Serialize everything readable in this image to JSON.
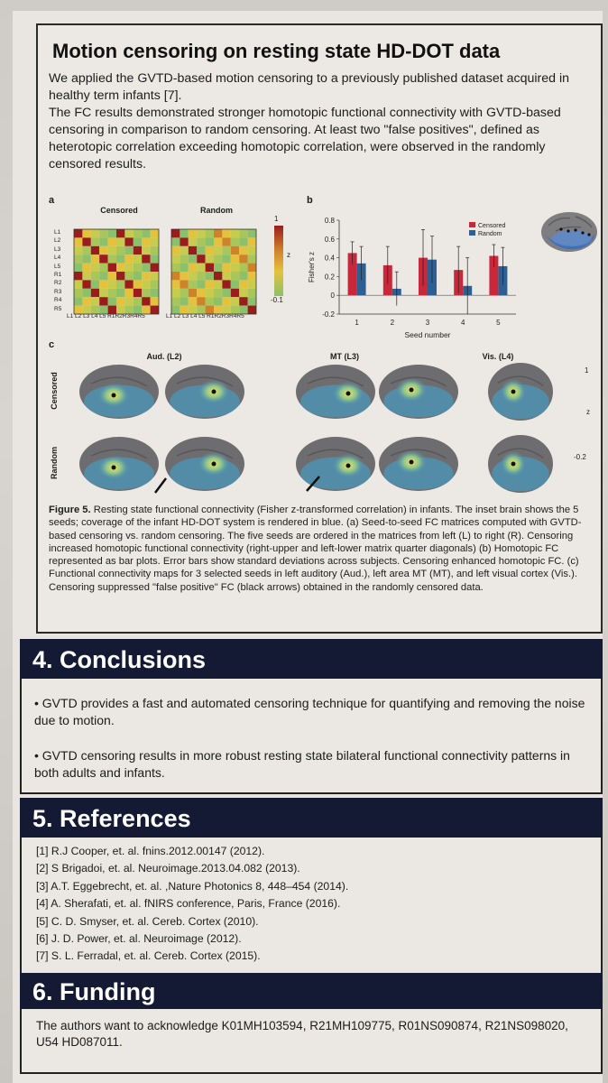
{
  "motion": {
    "title": "Motion censoring on resting state HD-DOT data",
    "para1": "We applied the GVTD-based motion censoring to a previously published dataset acquired in healthy term infants [7].",
    "para2": "The FC results demonstrated stronger homotopic functional connectivity with GVTD-based censoring in comparison to random censoring. At least two \"false positives\", defined as heterotopic correlation exceeding homotopic correlation, were observed in the randomly censored results."
  },
  "figure": {
    "panel_a": "a",
    "panel_b": "b",
    "panel_c": "c",
    "matrix_censored_title": "Censored",
    "matrix_random_title": "Random",
    "matrix_labels": [
      "L1",
      "L2",
      "L3",
      "L4",
      "L5",
      "R1",
      "R2",
      "R3",
      "R4",
      "R5"
    ],
    "matrix_xlabels": "L1 L2 L3 L4 L5 R1R2R3R4R5",
    "colorbar_top": "1",
    "colorbar_bottom": "-0.1",
    "colorbar_z": "z",
    "colorbar2_top": "1",
    "colorbar2_bottom": "-0.2",
    "colorbar2_z": "z",
    "map_titles": [
      "Aud. (L2)",
      "MT (L3)",
      "Vis. (L4)"
    ],
    "row_labels": [
      "Censored",
      "Random"
    ],
    "caption_lead": "Figure 5.",
    "caption": "Resting state functional connectivity (Fisher z-transformed correlation) in infants. The inset brain shows the 5 seeds; coverage of the infant HD-DOT system is rendered in blue. (a) Seed-to-seed FC matrices computed with GVTD-based censoring vs. random censoring. The five seeds are ordered in the matrices from left (L) to right (R). Censoring increased homotopic functional connectivity (right-upper and left-lower matrix quarter diagonals) (b) Homotopic FC represented as bar plots. Error bars show standard deviations across subjects. Censoring enhanced homotopic FC. (c) Functional connectivity maps for 3 selected seeds in left auditory (Aud.), left area MT (MT), and left visual cortex (Vis.). Censoring suppressed \"false positive\" FC (black arrows) obtained in the randomly censored data."
  },
  "chart_data": {
    "type": "bar",
    "categories": [
      "1",
      "2",
      "3",
      "4",
      "5"
    ],
    "series": [
      {
        "name": "Censored",
        "values": [
          0.45,
          0.32,
          0.4,
          0.27,
          0.42
        ],
        "err": [
          0.12,
          0.2,
          0.3,
          0.25,
          0.12
        ],
        "color": "#c8283a"
      },
      {
        "name": "Random",
        "values": [
          0.34,
          0.07,
          0.38,
          0.1,
          0.31
        ],
        "err": [
          0.18,
          0.18,
          0.25,
          0.3,
          0.2
        ],
        "color": "#2e5f93"
      }
    ],
    "xlabel": "Seed number",
    "ylabel": "Fisher's z",
    "ylim": [
      -0.2,
      0.8
    ],
    "yticks": [
      "0.8",
      "0.6",
      "0.4",
      "0.2",
      "0",
      "-0.2"
    ],
    "legend_position": "top-right"
  },
  "conclusions": {
    "header": "4. Conclusions",
    "item1": "• GVTD provides a fast and automated censoring technique for quantifying and removing the noise due to motion.",
    "item2": "• GVTD censoring results in more robust resting state bilateral functional connectivity patterns in both adults and infants."
  },
  "references": {
    "header": "5. References",
    "items": [
      "[1] R.J Cooper, et. al. fnins.2012.00147 (2012).",
      "[2] S Brigadoi, et. al. Neuroimage.2013.04.082 (2013).",
      "[3] A.T. Eggebrecht, et. al. ,Nature Photonics 8, 448–454 (2014).",
      "[4] A. Sherafati, et. al. fNIRS conference, Paris, France (2016).",
      "[5] C. D. Smyser, et. al. Cereb. Cortex (2010).",
      "[6] J. D. Power, et. al. Neuroimage (2012).",
      "[7] S. L. Ferradal, et. al. Cereb. Cortex (2015)."
    ]
  },
  "funding": {
    "header": "6. Funding",
    "text": "The authors want to acknowledge K01MH103594, R21MH109775, R01NS090874, R21NS098020, U54 HD087011."
  }
}
